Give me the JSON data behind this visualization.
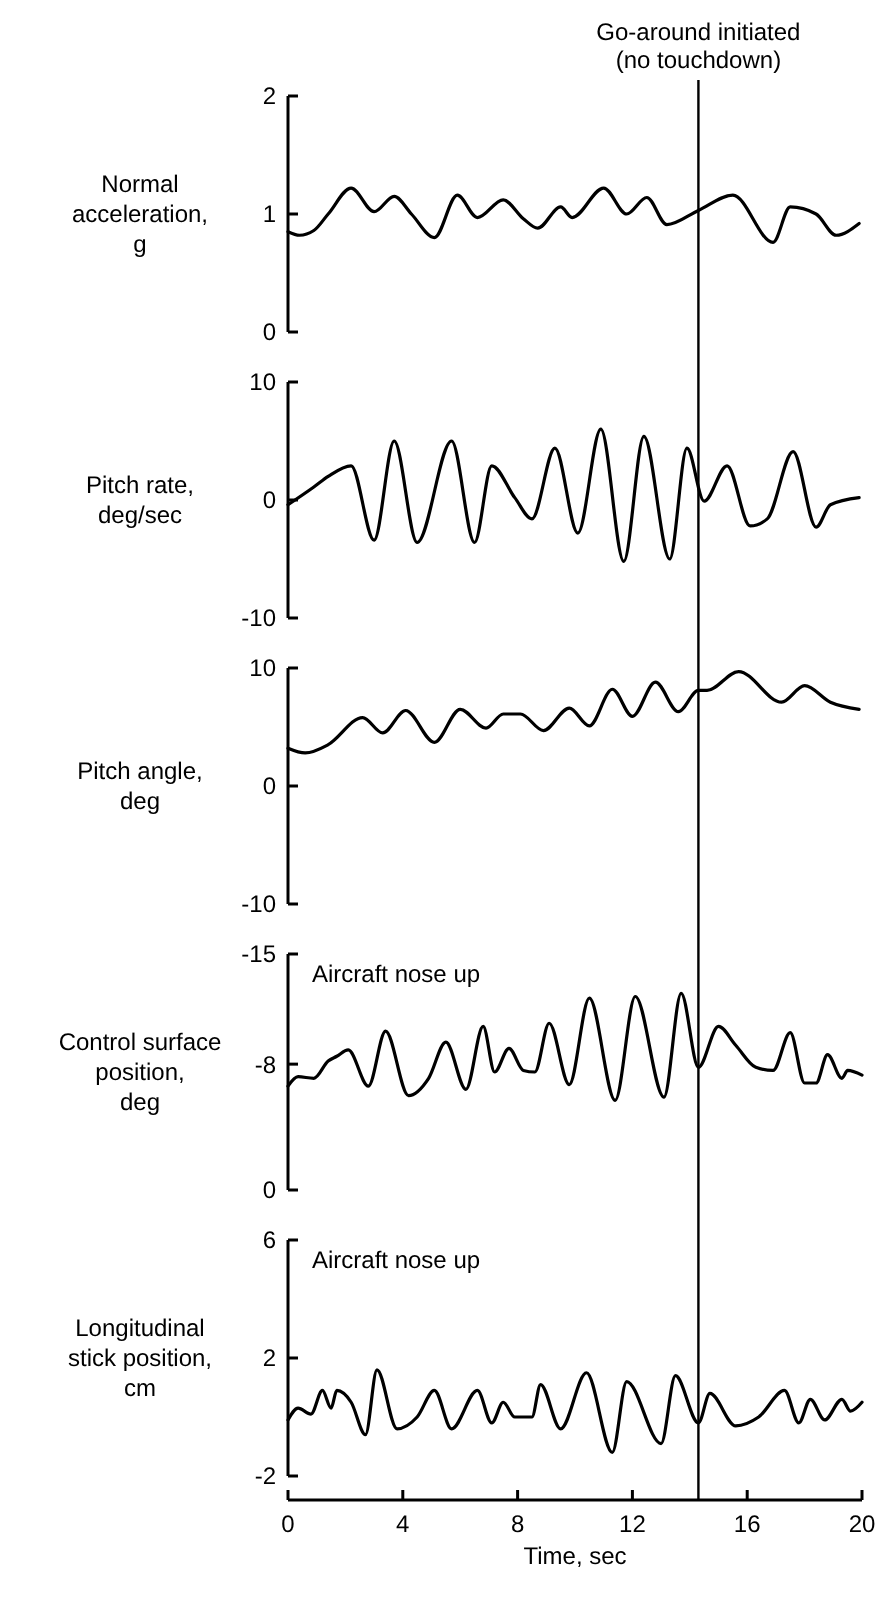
{
  "chart_data": [
    {
      "type": "line",
      "ylabel": "Normal acceleration, g",
      "xlim": [
        0,
        20
      ],
      "ylim": [
        0,
        2
      ],
      "yticks": [
        0,
        1,
        2
      ],
      "tick_labels": "y",
      "ref_lines": [
        {
          "axis": "x",
          "value": 14.3,
          "label": "Go-around initiated (no touchdown)"
        }
      ],
      "series": [
        {
          "color": "#000000",
          "x": [
            0,
            0.4,
            0.9,
            1.4,
            2.2,
            3.0,
            3.7,
            4.3,
            5.1,
            5.9,
            6.6,
            7.5,
            8.2,
            8.7,
            9.5,
            9.9,
            11.0,
            11.8,
            12.5,
            13.2,
            14.3,
            15.5,
            16.9,
            17.5,
            18.4,
            19.1,
            19.9
          ],
          "values": [
            0.85,
            0.82,
            0.86,
            1.0,
            1.22,
            1.02,
            1.15,
            1.0,
            0.8,
            1.16,
            0.97,
            1.12,
            0.96,
            0.88,
            1.06,
            0.97,
            1.22,
            1.0,
            1.14,
            0.91,
            1.03,
            1.16,
            0.76,
            1.06,
            1.0,
            0.82,
            0.92
          ]
        }
      ]
    },
    {
      "type": "line",
      "ylabel": "Pitch rate, deg/sec",
      "xlim": [
        0,
        20
      ],
      "ylim": [
        -10,
        10
      ],
      "yticks": [
        -10,
        0,
        10
      ],
      "tick_labels": "y",
      "ref_lines": [
        {
          "axis": "x",
          "value": 14.3
        }
      ],
      "series": [
        {
          "color": "#000000",
          "x": [
            0,
            0.9,
            1.4,
            2.2,
            3.0,
            3.7,
            4.5,
            5.7,
            6.5,
            7.1,
            7.9,
            8.5,
            9.3,
            10.1,
            10.9,
            11.7,
            12.4,
            13.3,
            13.9,
            14.5,
            15.3,
            16.1,
            16.7,
            17.6,
            18.4,
            18.9,
            19.9
          ],
          "values": [
            -0.4,
            1.1,
            2.0,
            2.9,
            -3.4,
            5.0,
            -3.6,
            5.0,
            -3.6,
            2.9,
            0.2,
            -1.6,
            4.4,
            -2.8,
            6.0,
            -5.2,
            5.4,
            -5.0,
            4.4,
            -0.1,
            2.9,
            -2.2,
            -1.6,
            4.1,
            -2.3,
            -0.4,
            0.2
          ]
        }
      ]
    },
    {
      "type": "line",
      "ylabel": "Pitch angle, deg",
      "xlim": [
        0,
        20
      ],
      "ylim": [
        -10,
        10
      ],
      "yticks": [
        -10,
        0,
        10
      ],
      "tick_labels": "y",
      "ref_lines": [
        {
          "axis": "x",
          "value": 14.3
        }
      ],
      "series": [
        {
          "color": "#000000",
          "x": [
            0,
            0.6,
            1.4,
            2.6,
            3.3,
            4.1,
            5.1,
            6.0,
            6.9,
            7.5,
            8.1,
            8.9,
            9.8,
            10.5,
            11.3,
            12.0,
            12.8,
            13.6,
            14.3,
            14.6,
            15.7,
            17.2,
            18.0,
            18.9,
            19.9
          ],
          "values": [
            3.2,
            2.8,
            3.5,
            5.8,
            4.5,
            6.4,
            3.7,
            6.5,
            4.9,
            6.1,
            6.1,
            4.7,
            6.6,
            5.1,
            8.2,
            5.9,
            8.8,
            6.3,
            8.1,
            8.1,
            9.7,
            7.1,
            8.5,
            7.1,
            6.5
          ]
        }
      ]
    },
    {
      "type": "line",
      "ylabel": "Control surface position, deg",
      "annotations": [
        "Aircraft nose up"
      ],
      "xlim": [
        0,
        20
      ],
      "ylim": [
        0,
        -15
      ],
      "yticks": [
        0,
        -8,
        -15
      ],
      "tick_labels": "y",
      "ref_lines": [
        {
          "axis": "x",
          "value": 14.3
        }
      ],
      "series": [
        {
          "color": "#000000",
          "x": [
            0,
            0.35,
            0.9,
            1.4,
            1.7,
            2.1,
            2.8,
            3.4,
            4.2,
            4.9,
            5.5,
            6.2,
            6.8,
            7.2,
            7.7,
            8.2,
            8.6,
            9.1,
            9.8,
            10.5,
            11.4,
            12.1,
            13.1,
            13.7,
            14.3,
            15.0,
            15.6,
            16.3,
            16.9,
            17.5,
            18.0,
            18.4,
            18.8,
            19.3,
            19.5,
            20
          ],
          "values": [
            -6.6,
            -7.2,
            -7.1,
            -8.2,
            -8.5,
            -8.9,
            -6.6,
            -10.1,
            -6.0,
            -7.1,
            -9.4,
            -6.4,
            -10.4,
            -7.5,
            -9.0,
            -7.6,
            -7.5,
            -10.6,
            -6.7,
            -12.2,
            -5.7,
            -12.3,
            -5.9,
            -12.5,
            -7.8,
            -10.4,
            -9.2,
            -7.8,
            -7.6,
            -10.0,
            -6.8,
            -6.8,
            -8.6,
            -7.1,
            -7.6,
            -7.3
          ]
        }
      ]
    },
    {
      "type": "line",
      "ylabel": "Longitudinal stick position, cm",
      "xlabel": "Time, sec",
      "annotations": [
        "Aircraft nose up"
      ],
      "xlim": [
        0,
        20
      ],
      "xticks": [
        0,
        4,
        8,
        12,
        16,
        20
      ],
      "ylim": [
        -2,
        6
      ],
      "yticks": [
        -2,
        2,
        6
      ],
      "ref_lines": [
        {
          "axis": "x",
          "value": 14.3
        }
      ],
      "series": [
        {
          "color": "#000000",
          "x": [
            0,
            0.35,
            0.8,
            1.2,
            1.5,
            1.7,
            2.2,
            2.7,
            3.1,
            3.8,
            4.5,
            5.1,
            5.7,
            6.6,
            7.1,
            7.5,
            7.9,
            8.5,
            8.8,
            9.5,
            10.4,
            11.3,
            11.8,
            13.0,
            13.5,
            14.3,
            14.7,
            15.6,
            16.4,
            17.3,
            17.8,
            18.2,
            18.7,
            19.3,
            19.6,
            20
          ],
          "values": [
            -0.1,
            0.3,
            0.1,
            0.9,
            0.3,
            0.9,
            0.5,
            -0.6,
            1.6,
            -0.4,
            0.0,
            0.9,
            -0.4,
            0.9,
            -0.2,
            0.5,
            0.0,
            0.0,
            1.1,
            -0.4,
            1.5,
            -1.2,
            1.2,
            -0.9,
            1.4,
            -0.2,
            0.8,
            -0.3,
            0.0,
            0.9,
            -0.2,
            0.6,
            -0.1,
            0.6,
            0.2,
            0.5
          ]
        }
      ]
    }
  ]
}
